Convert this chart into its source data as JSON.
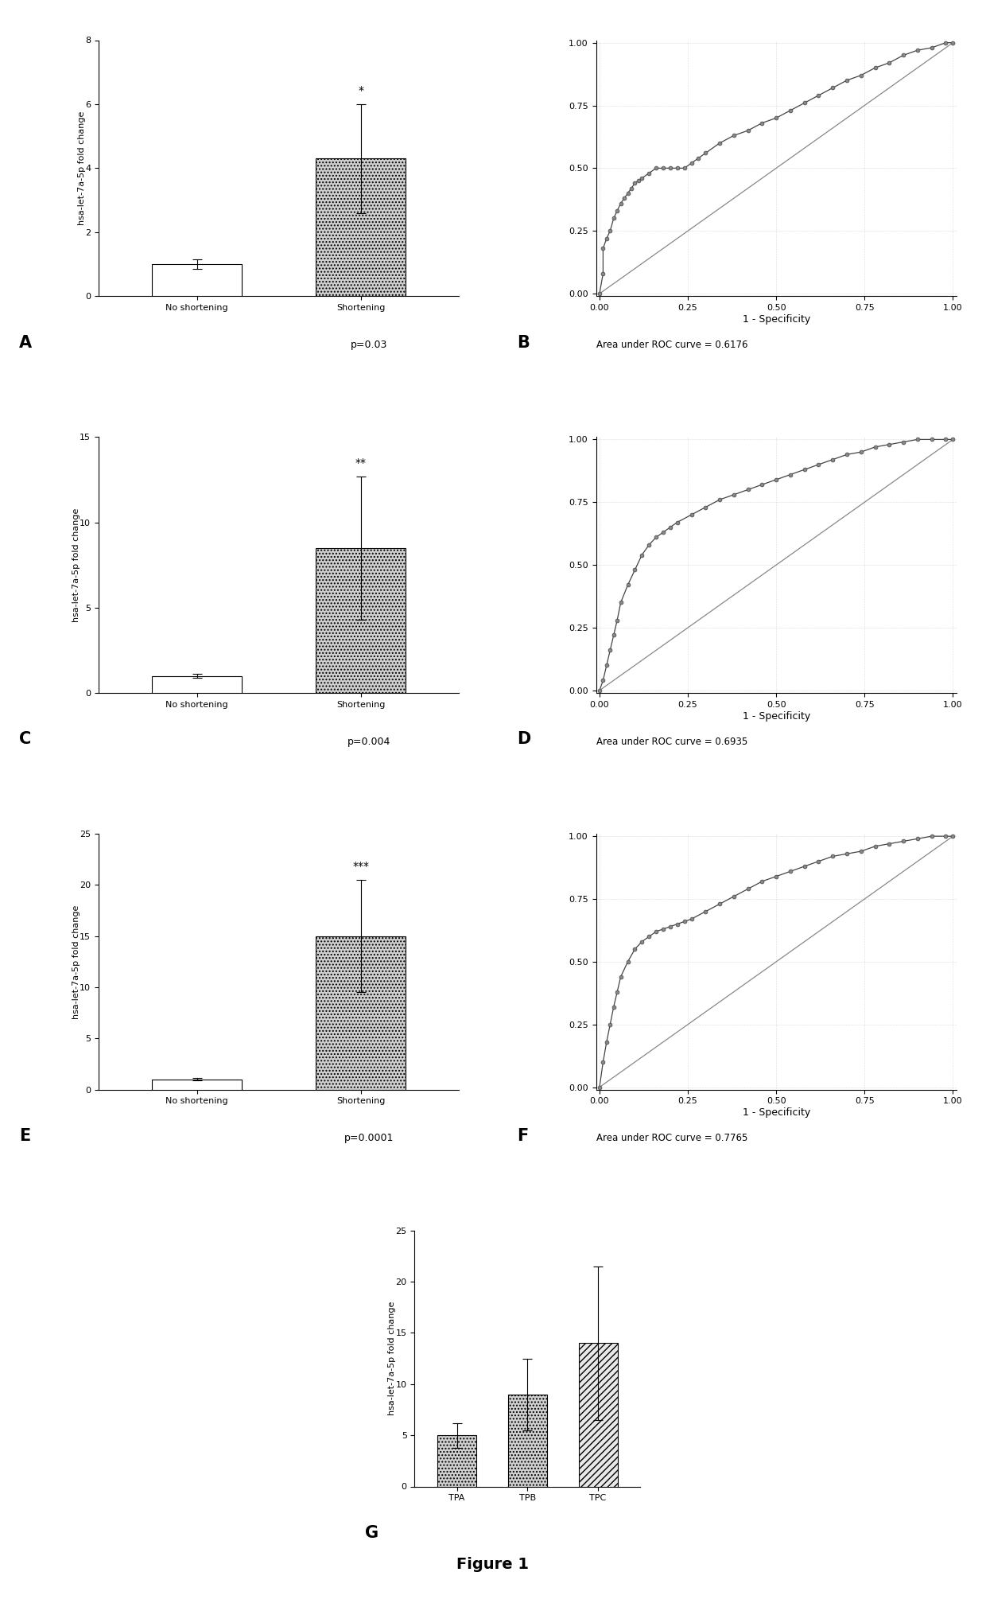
{
  "panel_A": {
    "bars": [
      {
        "label": "No shortening",
        "value": 1.0,
        "error": 0.15,
        "color": "#ffffff",
        "hatch": ""
      },
      {
        "label": "Shortening",
        "value": 4.3,
        "error": 1.7,
        "color": "#d0d0d0",
        "hatch": "...."
      }
    ],
    "ylim": [
      0,
      8
    ],
    "yticks": [
      0,
      2,
      4,
      6,
      8
    ],
    "ylabel": "hsa-let-7a-5p fold change",
    "significance": "*",
    "pvalue": "p=0.03",
    "label": "A"
  },
  "panel_B": {
    "roc_x": [
      0.0,
      0.01,
      0.01,
      0.02,
      0.03,
      0.04,
      0.05,
      0.06,
      0.07,
      0.08,
      0.09,
      0.1,
      0.11,
      0.12,
      0.14,
      0.16,
      0.18,
      0.2,
      0.22,
      0.24,
      0.26,
      0.28,
      0.3,
      0.34,
      0.38,
      0.42,
      0.46,
      0.5,
      0.54,
      0.58,
      0.62,
      0.66,
      0.7,
      0.74,
      0.78,
      0.82,
      0.86,
      0.9,
      0.94,
      0.98,
      1.0
    ],
    "roc_y": [
      0.0,
      0.08,
      0.18,
      0.22,
      0.25,
      0.3,
      0.33,
      0.36,
      0.38,
      0.4,
      0.42,
      0.44,
      0.45,
      0.46,
      0.48,
      0.5,
      0.5,
      0.5,
      0.5,
      0.5,
      0.52,
      0.54,
      0.56,
      0.6,
      0.63,
      0.65,
      0.68,
      0.7,
      0.73,
      0.76,
      0.79,
      0.82,
      0.85,
      0.87,
      0.9,
      0.92,
      0.95,
      0.97,
      0.98,
      1.0,
      1.0
    ],
    "auc": "Area under ROC curve = 0.6176",
    "label": "B"
  },
  "panel_C": {
    "bars": [
      {
        "label": "No shortening",
        "value": 1.0,
        "error": 0.1,
        "color": "#ffffff",
        "hatch": ""
      },
      {
        "label": "Shortening",
        "value": 8.5,
        "error": 4.2,
        "color": "#d0d0d0",
        "hatch": "...."
      }
    ],
    "ylim": [
      0,
      15
    ],
    "yticks": [
      0,
      5,
      10,
      15
    ],
    "ylabel": "hsa-let-7a-5p fold change",
    "significance": "**",
    "pvalue": "p=0.004",
    "label": "C"
  },
  "panel_D": {
    "roc_x": [
      0.0,
      0.01,
      0.02,
      0.03,
      0.04,
      0.05,
      0.06,
      0.08,
      0.1,
      0.12,
      0.14,
      0.16,
      0.18,
      0.2,
      0.22,
      0.26,
      0.3,
      0.34,
      0.38,
      0.42,
      0.46,
      0.5,
      0.54,
      0.58,
      0.62,
      0.66,
      0.7,
      0.74,
      0.78,
      0.82,
      0.86,
      0.9,
      0.94,
      0.98,
      1.0
    ],
    "roc_y": [
      0.0,
      0.04,
      0.1,
      0.16,
      0.22,
      0.28,
      0.35,
      0.42,
      0.48,
      0.54,
      0.58,
      0.61,
      0.63,
      0.65,
      0.67,
      0.7,
      0.73,
      0.76,
      0.78,
      0.8,
      0.82,
      0.84,
      0.86,
      0.88,
      0.9,
      0.92,
      0.94,
      0.95,
      0.97,
      0.98,
      0.99,
      1.0,
      1.0,
      1.0,
      1.0
    ],
    "auc": "Area under ROC curve = 0.6935",
    "label": "D"
  },
  "panel_E": {
    "bars": [
      {
        "label": "No shortening",
        "value": 1.0,
        "error": 0.12,
        "color": "#ffffff",
        "hatch": ""
      },
      {
        "label": "Shortening",
        "value": 15.0,
        "error": 5.5,
        "color": "#d0d0d0",
        "hatch": "...."
      }
    ],
    "ylim": [
      0,
      25
    ],
    "yticks": [
      0,
      5,
      10,
      15,
      20,
      25
    ],
    "ylabel": "hsa-let-7a-5p fold change",
    "significance": "***",
    "pvalue": "p=0.0001",
    "label": "E"
  },
  "panel_F": {
    "roc_x": [
      0.0,
      0.01,
      0.02,
      0.03,
      0.04,
      0.05,
      0.06,
      0.08,
      0.1,
      0.12,
      0.14,
      0.16,
      0.18,
      0.2,
      0.22,
      0.24,
      0.26,
      0.3,
      0.34,
      0.38,
      0.42,
      0.46,
      0.5,
      0.54,
      0.58,
      0.62,
      0.66,
      0.7,
      0.74,
      0.78,
      0.82,
      0.86,
      0.9,
      0.94,
      0.98,
      1.0
    ],
    "roc_y": [
      0.0,
      0.1,
      0.18,
      0.25,
      0.32,
      0.38,
      0.44,
      0.5,
      0.55,
      0.58,
      0.6,
      0.62,
      0.63,
      0.64,
      0.65,
      0.66,
      0.67,
      0.7,
      0.73,
      0.76,
      0.79,
      0.82,
      0.84,
      0.86,
      0.88,
      0.9,
      0.92,
      0.93,
      0.94,
      0.96,
      0.97,
      0.98,
      0.99,
      1.0,
      1.0,
      1.0
    ],
    "auc": "Area under ROC curve = 0.7765",
    "label": "F"
  },
  "panel_G": {
    "bars": [
      {
        "label": "TPA",
        "value": 5.0,
        "error": 1.2,
        "color": "#d0d0d0",
        "hatch": "...."
      },
      {
        "label": "TPB",
        "value": 9.0,
        "error": 3.5,
        "color": "#d0d0d0",
        "hatch": "...."
      },
      {
        "label": "TPC",
        "value": 14.0,
        "error": 7.5,
        "color": "#e8e8e8",
        "hatch": "////"
      }
    ],
    "ylim": [
      0,
      25
    ],
    "yticks": [
      0,
      5,
      10,
      15,
      20,
      25
    ],
    "ylabel": "hsa-let-7a-5p fold change",
    "label": "G"
  },
  "figure_label": "Figure 1"
}
